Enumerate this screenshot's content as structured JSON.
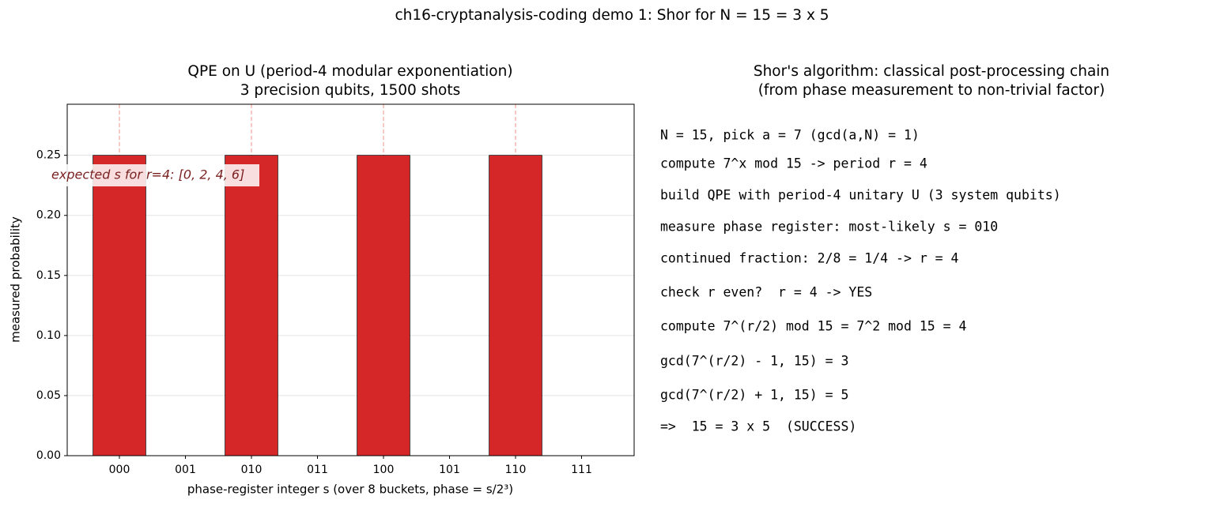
{
  "figure_title": "ch16-cryptanalysis-coding demo 1: Shor for N = 15 = 3 x 5",
  "chart_data": {
    "type": "bar",
    "title_lines": [
      "QPE on U (period-4 modular exponentiation)",
      "3 precision qubits, 1500 shots"
    ],
    "x_label": "phase-register integer s (over 8 buckets, phase = s/2³)",
    "y_label": "measured probability",
    "categories": [
      "000",
      "001",
      "010",
      "011",
      "100",
      "101",
      "110",
      "111"
    ],
    "values": [
      0.25,
      0,
      0.25,
      0,
      0.25,
      0,
      0.25,
      0
    ],
    "color": "#d62728",
    "ylim": [
      0,
      0.2925
    ],
    "yticks": [
      {
        "value": 0,
        "label": "0.00"
      },
      {
        "value": 0.05,
        "label": "0.05"
      },
      {
        "value": 0.1,
        "label": "0.10"
      },
      {
        "value": 0.15,
        "label": "0.15"
      },
      {
        "value": 0.2,
        "label": "0.20"
      },
      {
        "value": 0.25,
        "label": "0.25"
      }
    ],
    "grid": true,
    "expected_s": [
      0,
      2,
      4,
      6
    ],
    "annotation": "expected s for r=4: [0, 2, 4, 6]"
  },
  "steps_panel": {
    "title_lines": [
      "Shor's algorithm: classical post-processing chain",
      "(from phase measurement to non-trivial factor)"
    ],
    "lines": [
      "N = 15, pick a = 7 (gcd(a,N) = 1)",
      "compute 7^x mod 15 -> period r = 4",
      "build QPE with period-4 unitary U (3 system qubits)",
      "measure phase register: most-likely s = 010",
      "continued fraction: 2/8 = 1/4 -> r = 4",
      "check r even?  r = 4 -> YES",
      "compute 7^(r/2) mod 15 = 7^2 mod 15 = 4",
      "gcd(7^(r/2) - 1, 15) = 3",
      "gcd(7^(r/2) + 1, 15) = 5",
      "=>  15 = 3 x 5  (SUCCESS)"
    ]
  }
}
